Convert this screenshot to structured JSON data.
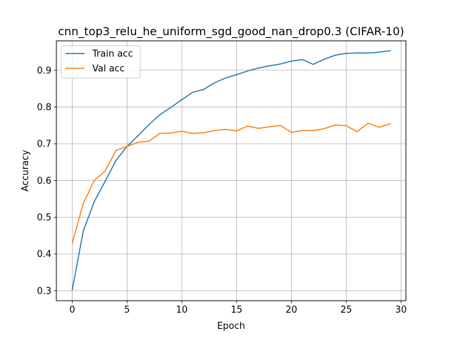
{
  "chart_data": {
    "type": "line",
    "title": "cnn_top3_relu_he_uniform_sgd_good_nan_drop0.3 (CIFAR-10)",
    "xlabel": "Epoch",
    "ylabel": "Accuracy",
    "xlim": [
      -1.45,
      30.45
    ],
    "ylim": [
      0.273,
      0.98
    ],
    "x_ticks": [
      0,
      5,
      10,
      15,
      20,
      25,
      30
    ],
    "y_ticks": [
      0.3,
      0.4,
      0.5,
      0.6,
      0.7,
      0.8,
      0.9
    ],
    "x_tick_labels": [
      "0",
      "5",
      "10",
      "15",
      "20",
      "25",
      "30"
    ],
    "y_tick_labels": [
      "0.3",
      "0.4",
      "0.5",
      "0.6",
      "0.7",
      "0.8",
      "0.9"
    ],
    "grid": true,
    "legend_position": "top-left",
    "x": [
      0,
      1,
      2,
      3,
      4,
      5,
      6,
      7,
      8,
      9,
      10,
      11,
      12,
      13,
      14,
      15,
      16,
      17,
      18,
      19,
      20,
      21,
      22,
      23,
      24,
      25,
      26,
      27,
      28,
      29
    ],
    "series": [
      {
        "name": "Train acc",
        "color": "#1f77b4",
        "values": [
          0.303,
          0.462,
          0.542,
          0.598,
          0.655,
          0.693,
          0.722,
          0.752,
          0.779,
          0.799,
          0.82,
          0.84,
          0.848,
          0.866,
          0.879,
          0.888,
          0.898,
          0.906,
          0.912,
          0.917,
          0.925,
          0.929,
          0.916,
          0.93,
          0.941,
          0.946,
          0.947,
          0.947,
          0.949,
          0.953
        ]
      },
      {
        "name": "Val acc",
        "color": "#ff7f0e",
        "values": [
          0.43,
          0.537,
          0.6,
          0.626,
          0.682,
          0.693,
          0.704,
          0.707,
          0.728,
          0.729,
          0.734,
          0.728,
          0.73,
          0.736,
          0.739,
          0.735,
          0.748,
          0.742,
          0.746,
          0.75,
          0.731,
          0.736,
          0.736,
          0.741,
          0.751,
          0.749,
          0.733,
          0.756,
          0.745,
          0.754
        ]
      }
    ]
  }
}
